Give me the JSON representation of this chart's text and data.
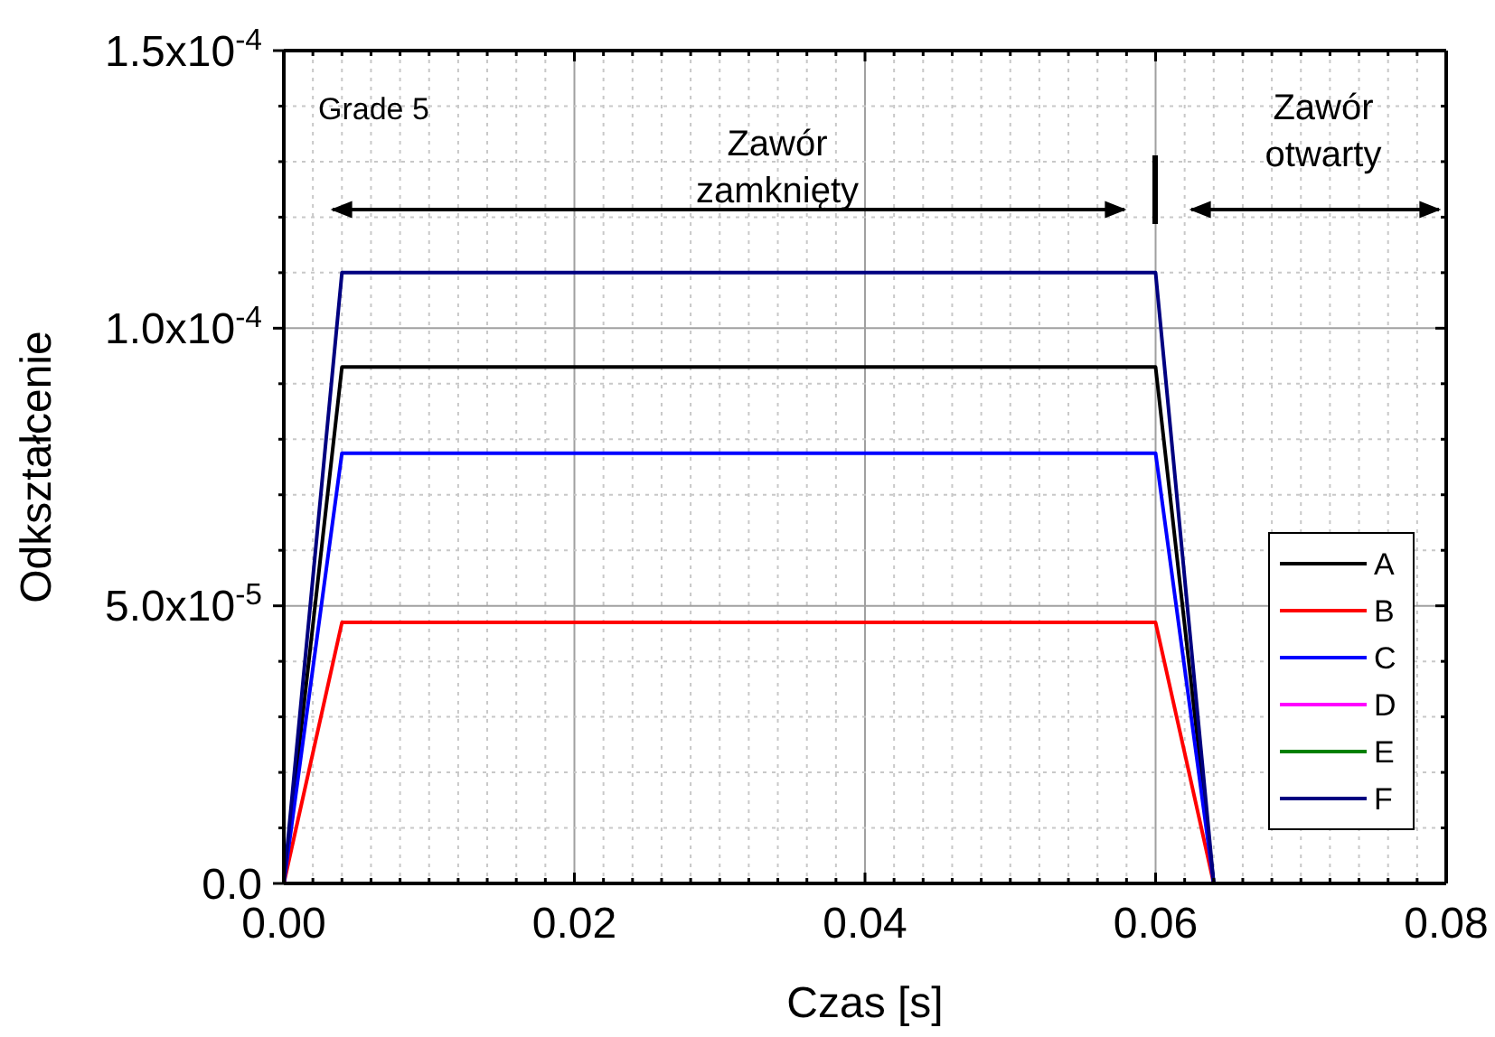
{
  "chart_data": {
    "type": "line",
    "xlabel": "Czas [s]",
    "ylabel": "Odkształcenie",
    "x": [
      0,
      0.004,
      0.06,
      0.064,
      0.076
    ],
    "series": [
      {
        "name": "A",
        "color": "#000000",
        "values": [
          0,
          9.3e-05,
          9.3e-05,
          0,
          0
        ]
      },
      {
        "name": "B",
        "color": "#ff0000",
        "values": [
          0,
          4.7e-05,
          4.7e-05,
          0,
          0
        ]
      },
      {
        "name": "C",
        "color": "#0000ff",
        "values": [
          0,
          7.75e-05,
          7.75e-05,
          0,
          0
        ]
      },
      {
        "name": "D",
        "color": "#ff00ff",
        "values": [
          null,
          null,
          null,
          null,
          null
        ]
      },
      {
        "name": "E",
        "color": "#008000",
        "values": [
          null,
          null,
          null,
          null,
          null
        ]
      },
      {
        "name": "F",
        "color": "#000080",
        "values": [
          0,
          0.00011,
          0.00011,
          0,
          0
        ]
      }
    ],
    "xlim": [
      0,
      0.08
    ],
    "xticks": [
      {
        "value": 0,
        "label": "0.00"
      },
      0.02,
      0.04,
      0.06,
      0.08
    ],
    "ylim": [
      0,
      0.00015
    ],
    "yticks": [
      {
        "value": 0,
        "label": "0.0"
      },
      {
        "value": 5e-05,
        "label": "5.0x10$^{-5}$"
      },
      {
        "value": 0.0001,
        "label": "1.0x10$^{-4}$"
      },
      {
        "value": 0.00015,
        "label": "1.5x10$^{-4}$"
      }
    ],
    "annotations": [
      "Grade 5",
      "Zawór zamknięty",
      "Zawór otwarty"
    ],
    "grid": true,
    "legend": "bottom right",
    "line_style": "solid",
    "marker": "none"
  }
}
